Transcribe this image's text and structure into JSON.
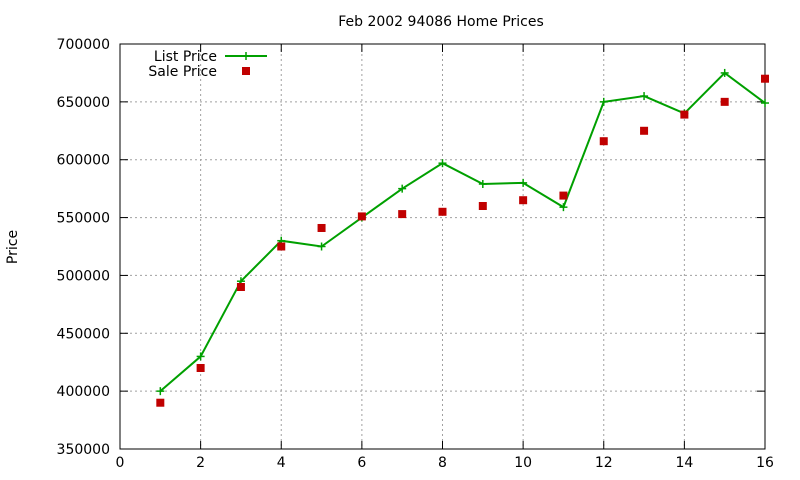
{
  "chart_data": {
    "type": "line",
    "title": "Feb 2002 94086 Home Prices",
    "xlabel": "",
    "ylabel": "Price",
    "xlim": [
      0,
      16
    ],
    "ylim": [
      350000,
      700000
    ],
    "xticks": [
      0,
      2,
      4,
      6,
      8,
      10,
      12,
      14,
      16
    ],
    "yticks": [
      350000,
      400000,
      450000,
      500000,
      550000,
      600000,
      650000,
      700000
    ],
    "grid": true,
    "legend": "top-left",
    "x": [
      1,
      2,
      3,
      4,
      5,
      6,
      7,
      8,
      9,
      10,
      11,
      12,
      13,
      14,
      15,
      16
    ],
    "series": [
      {
        "name": "List Price",
        "style": "lines+points",
        "marker": "plus",
        "color": "#00a000",
        "values": [
          400000,
          430000,
          495000,
          530000,
          525000,
          550000,
          575000,
          597000,
          579000,
          580000,
          559000,
          650000,
          655000,
          640000,
          675000,
          649000
        ]
      },
      {
        "name": "Sale Price",
        "style": "points",
        "marker": "square",
        "color": "#c00000",
        "values": [
          390000,
          420000,
          490000,
          525000,
          541000,
          551000,
          553000,
          555000,
          560000,
          565000,
          569000,
          616000,
          625000,
          639000,
          650000,
          670000
        ]
      }
    ]
  }
}
